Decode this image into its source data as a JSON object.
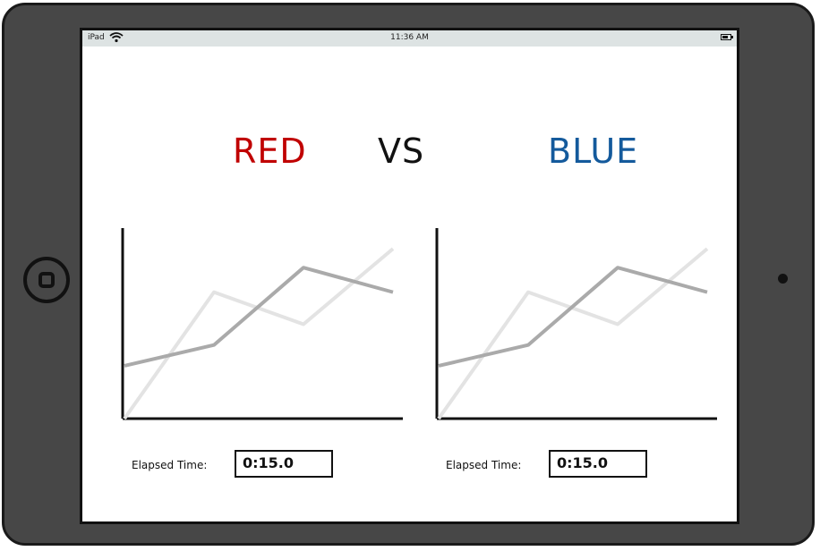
{
  "status_bar": {
    "carrier": "iPad",
    "time": "11:36 AM",
    "wifi_icon": "wifi-icon",
    "battery_icon": "battery-icon"
  },
  "header": {
    "left_team": "RED",
    "vs": "VS",
    "right_team": "BLUE",
    "left_color": "#c00000",
    "right_color": "#145a9c"
  },
  "panels": [
    {
      "elapsed_label": "Elapsed Time:",
      "elapsed_value": "0:15.0"
    },
    {
      "elapsed_label": "Elapsed Time:",
      "elapsed_value": "0:15.0"
    }
  ],
  "chart_data": [
    {
      "type": "line",
      "x": [
        0,
        1,
        2,
        3
      ],
      "series": [
        {
          "values": [
            0,
            0.67,
            0.5,
            0.9
          ],
          "color": "#e3e3e3"
        },
        {
          "values": [
            0.28,
            0.39,
            0.8,
            0.67
          ],
          "color": "#aaaaaa"
        }
      ],
      "xlim": [
        0,
        3
      ],
      "ylim": [
        0,
        1
      ]
    },
    {
      "type": "line",
      "x": [
        0,
        1,
        2,
        3
      ],
      "series": [
        {
          "values": [
            0,
            0.67,
            0.5,
            0.9
          ],
          "color": "#e3e3e3"
        },
        {
          "values": [
            0.28,
            0.39,
            0.8,
            0.67
          ],
          "color": "#aaaaaa"
        }
      ],
      "xlim": [
        0,
        3
      ],
      "ylim": [
        0,
        1
      ]
    }
  ]
}
